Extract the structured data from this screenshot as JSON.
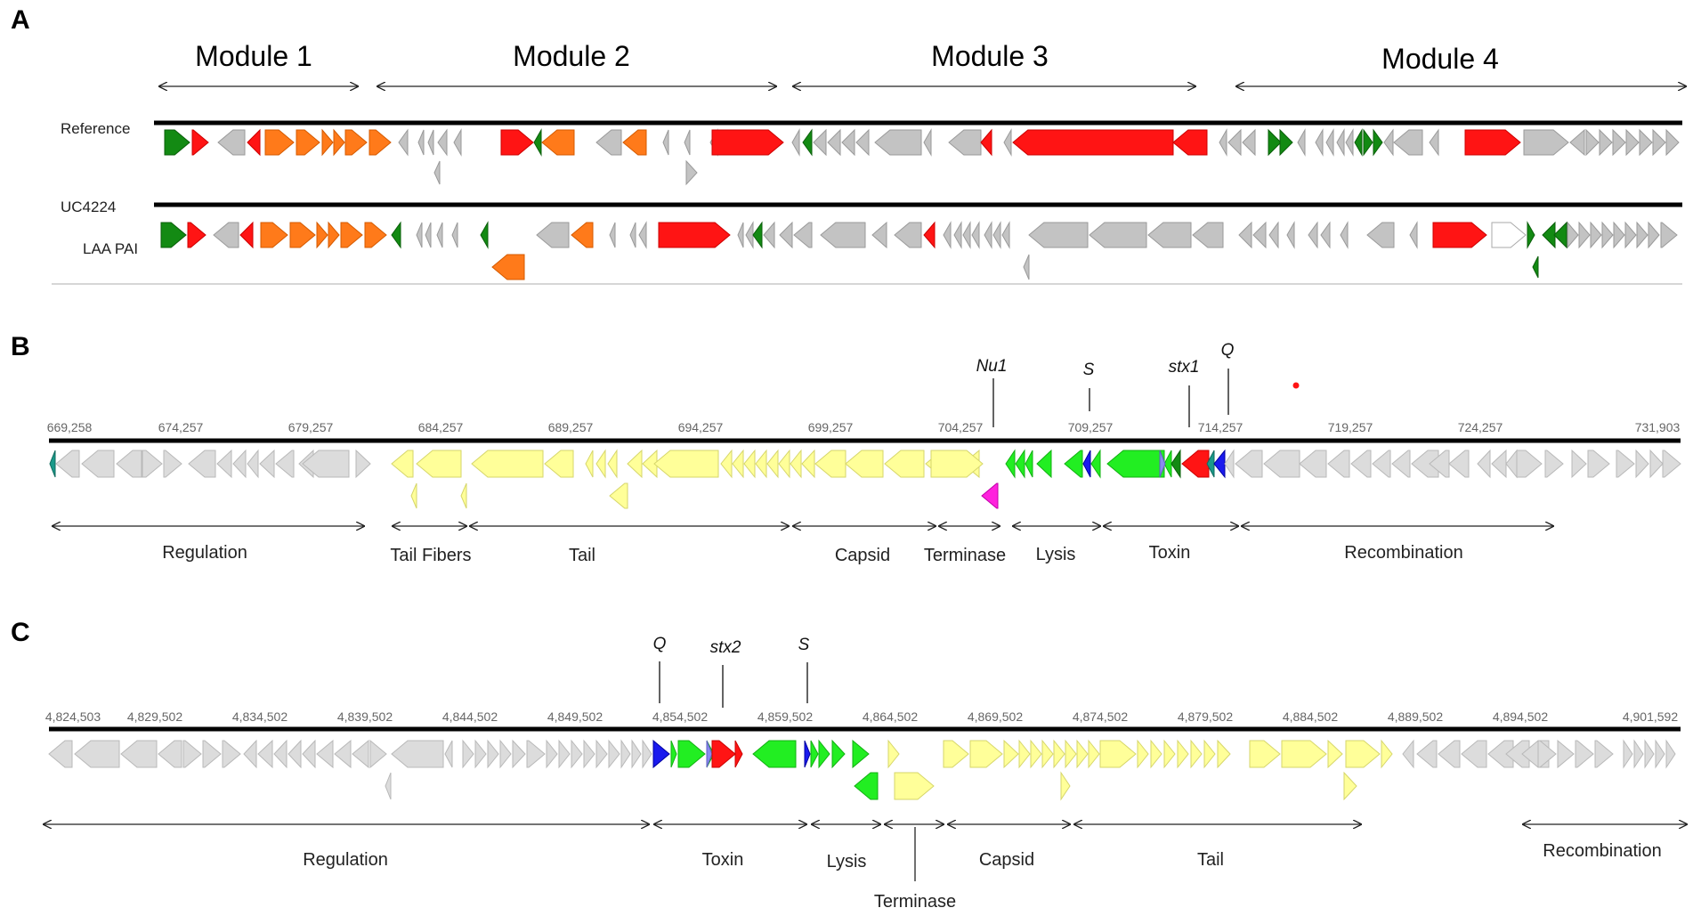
{
  "colors": {
    "grey": "#c3c3c3",
    "grey_stroke": "#9a9a9a",
    "lightgrey": "#dcdcdc",
    "lightgrey_stroke": "#b8b8b8",
    "red": "#ff1414",
    "red_stroke": "#cc0000",
    "orange": "#ff7a1a",
    "orange_stroke": "#d45a00",
    "darkgreen": "#138a13",
    "darkgreen_stroke": "#0a5e0a",
    "green": "#22ee22",
    "green_stroke": "#12b012",
    "yellow": "#ffff99",
    "yellow_stroke": "#d6d66a",
    "blue": "#1a1aee",
    "blue_stroke": "#0000a0",
    "magenta": "#ff22dd",
    "magenta_stroke": "#c000a8",
    "teal": "#1a9a8a",
    "teal_stroke": "#0f6a5e",
    "lavender": "#8a8af0",
    "lavender_stroke": "#5f5fc0",
    "white": "#ffffff",
    "white_stroke": "#aaaaaa"
  },
  "panelA": {
    "letter": "A",
    "modules": [
      "Module 1",
      "Module 2",
      "Module 3",
      "Module 4"
    ],
    "labels": {
      "reference": "Reference",
      "uc": "UC4224",
      "laa": "LAA PAI"
    }
  },
  "panelB": {
    "letter": "B",
    "ticks": [
      "669,258",
      "674,257",
      "679,257",
      "684,257",
      "689,257",
      "694,257",
      "699,257",
      "704,257",
      "709,257",
      "714,257",
      "719,257",
      "724,257",
      "731,903"
    ],
    "markers": [
      "Nu1",
      "S",
      "stx1",
      "Q"
    ],
    "regions": [
      "Regulation",
      "Tail Fibers",
      "Tail",
      "Capsid",
      "Terminase",
      "Lysis",
      "Toxin",
      "Recombination"
    ]
  },
  "panelC": {
    "letter": "C",
    "ticks": [
      "4,824,503",
      "4,829,502",
      "4,834,502",
      "4,839,502",
      "4,844,502",
      "4,849,502",
      "4,854,502",
      "4,859,502",
      "4,864,502",
      "4,869,502",
      "4,874,502",
      "4,879,502",
      "4,884,502",
      "4,889,502",
      "4,894,502",
      "4,901,592"
    ],
    "markers": [
      "Q",
      "stx2",
      "S"
    ],
    "regions": [
      "Regulation",
      "Toxin",
      "Lysis",
      "Terminase",
      "Capsid",
      "Tail",
      "Recombination"
    ]
  }
}
